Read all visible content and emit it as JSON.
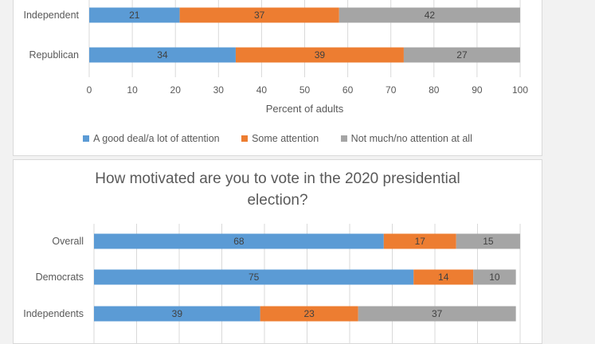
{
  "chart_data": [
    {
      "type": "bar",
      "orientation": "horizontal",
      "stacked": true,
      "title": "",
      "categories": [
        "Independent",
        "Republican"
      ],
      "series": [
        {
          "name": "A good deal/a lot of attention",
          "values": [
            21,
            34
          ],
          "color": "#5b9bd5"
        },
        {
          "name": "Some attention",
          "values": [
            37,
            39
          ],
          "color": "#ed7d31"
        },
        {
          "name": "Not much/no attention at all",
          "values": [
            42,
            27
          ],
          "color": "#a5a5a5"
        }
      ],
      "xlabel": "Percent of adults",
      "xlim": [
        0,
        100
      ],
      "xticks": [
        "0",
        "10",
        "20",
        "30",
        "40",
        "50",
        "60",
        "70",
        "80",
        "90",
        "100"
      ],
      "grid": true,
      "legend": "bottom"
    },
    {
      "type": "bar",
      "orientation": "horizontal",
      "stacked": true,
      "title_lines": [
        "How motivated are you to vote in the 2020 presidential",
        "election?"
      ],
      "categories": [
        "Overall",
        "Democrats",
        "Independents"
      ],
      "series": [
        {
          "values": [
            68,
            75,
            39
          ],
          "color": "#5b9bd5"
        },
        {
          "values": [
            17,
            14,
            23
          ],
          "color": "#ed7d31"
        },
        {
          "values": [
            15,
            10,
            37
          ],
          "color": "#a5a5a5"
        }
      ],
      "xlim": [
        0,
        100
      ],
      "grid": true
    }
  ]
}
